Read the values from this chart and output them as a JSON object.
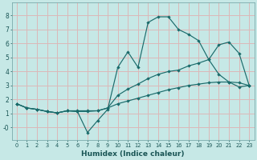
{
  "xlabel": "Humidex (Indice chaleur)",
  "bg_color": "#c6e8e6",
  "grid_color": "#dbb8b8",
  "line_color": "#1a6b6b",
  "xlim": [
    -0.5,
    23.5
  ],
  "ylim": [
    -0.9,
    8.9
  ],
  "xticks": [
    0,
    1,
    2,
    3,
    4,
    5,
    6,
    7,
    8,
    9,
    10,
    11,
    12,
    13,
    14,
    15,
    16,
    17,
    18,
    19,
    20,
    21,
    22,
    23
  ],
  "yticks": [
    0,
    1,
    2,
    3,
    4,
    5,
    6,
    7,
    8
  ],
  "ytick_labels": [
    "-0",
    "1",
    "2",
    "3",
    "4",
    "5",
    "6",
    "7",
    "8"
  ],
  "line1_x": [
    0,
    1,
    2,
    3,
    4,
    5,
    6,
    7,
    8,
    9,
    10,
    11,
    12,
    13,
    14,
    15,
    16,
    17,
    18,
    19,
    20,
    21,
    22,
    23
  ],
  "line1_y": [
    1.7,
    1.4,
    1.3,
    1.15,
    1.05,
    1.2,
    1.2,
    1.2,
    1.2,
    1.4,
    1.7,
    1.9,
    2.1,
    2.3,
    2.5,
    2.7,
    2.85,
    3.0,
    3.1,
    3.2,
    3.25,
    3.25,
    3.2,
    3.0
  ],
  "line2_x": [
    0,
    1,
    2,
    3,
    4,
    5,
    6,
    7,
    8,
    9,
    10,
    11,
    12,
    13,
    14,
    15,
    16,
    17,
    18,
    19,
    20,
    21,
    22,
    23
  ],
  "line2_y": [
    1.7,
    1.4,
    1.3,
    1.15,
    1.05,
    1.2,
    1.15,
    -0.35,
    0.5,
    1.3,
    4.3,
    5.4,
    4.3,
    7.5,
    7.9,
    7.9,
    7.0,
    6.65,
    6.2,
    4.85,
    3.8,
    3.25,
    2.9,
    3.0
  ],
  "line3_x": [
    0,
    1,
    2,
    3,
    4,
    5,
    6,
    7,
    8,
    9,
    10,
    11,
    12,
    13,
    14,
    15,
    16,
    17,
    18,
    19,
    20,
    21,
    22,
    23
  ],
  "line3_y": [
    1.7,
    1.4,
    1.3,
    1.15,
    1.05,
    1.2,
    1.15,
    1.15,
    1.2,
    1.4,
    2.3,
    2.75,
    3.1,
    3.5,
    3.8,
    4.0,
    4.1,
    4.4,
    4.6,
    4.85,
    5.9,
    6.1,
    5.3,
    3.0
  ]
}
